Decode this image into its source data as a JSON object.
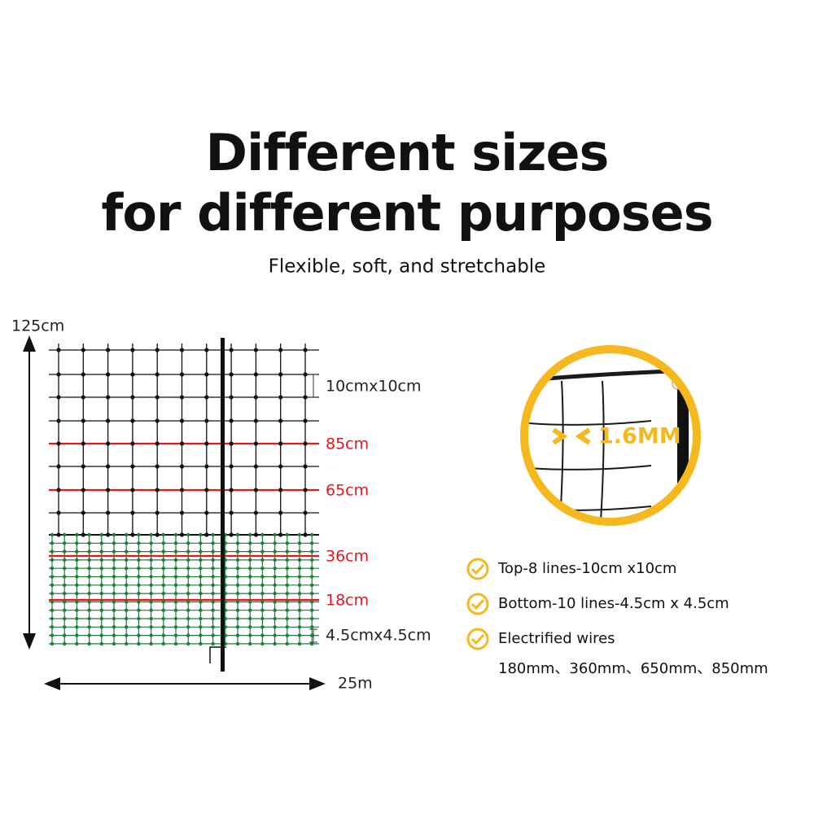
{
  "header": {
    "title_lines": [
      "Different sizes",
      "for different purposes"
    ],
    "subtitle": "Flexible, soft, and stretchable"
  },
  "diagram": {
    "height_label": "125cm",
    "mesh_top_label": "10cmx10cm",
    "wire_labels": [
      "85cm",
      "65cm",
      "36cm",
      "18cm"
    ],
    "mesh_bottom_label": "4.5cmx4.5cm",
    "length_label": "25m"
  },
  "callout": {
    "label": "1.6MM"
  },
  "features": {
    "items": [
      "Top-8 lines-10cm x10cm",
      "Bottom-10 lines-4.5cm x 4.5cm",
      "Electrified wires"
    ],
    "wire_sizes": "180mm、360mm、650mm、850mm"
  }
}
